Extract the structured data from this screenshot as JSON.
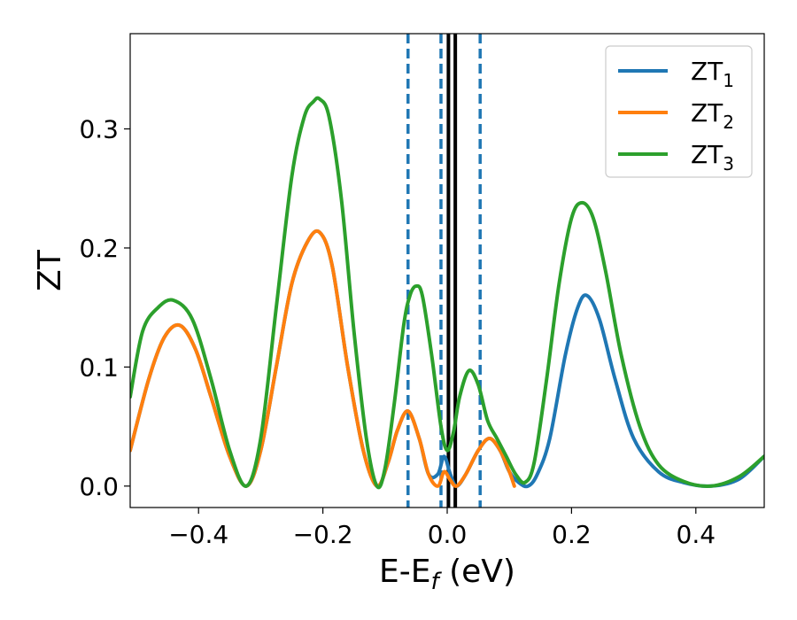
{
  "chart_data": {
    "type": "line",
    "xlabel": "E-E",
    "xlabel_sub": "f",
    "xlabel_unit": " (eV)",
    "ylabel": "ZT",
    "xlim": [
      -0.51,
      0.51
    ],
    "ylim": [
      -0.018,
      0.38
    ],
    "x_ticks": [
      -0.4,
      -0.2,
      0.0,
      0.2,
      0.4
    ],
    "x_tick_labels": [
      "−0.4",
      "−0.2",
      "0.0",
      "0.2",
      "0.4"
    ],
    "y_ticks": [
      0.0,
      0.1,
      0.2,
      0.3
    ],
    "y_tick_labels": [
      "0.0",
      "0.1",
      "0.2",
      "0.3"
    ],
    "legend_position": "top-right",
    "vertical_lines": [
      {
        "x": -0.063,
        "style": "dashed",
        "color": "#1f77b4"
      },
      {
        "x": -0.01,
        "style": "dashed",
        "color": "#1f77b4"
      },
      {
        "x": 0.053,
        "style": "dashed",
        "color": "#1f77b4"
      },
      {
        "x": 0.002,
        "style": "solid",
        "color": "#000000"
      },
      {
        "x": 0.013,
        "style": "solid",
        "color": "#000000"
      }
    ],
    "series": [
      {
        "name": "ZT",
        "sub": "1",
        "color": "#1f77b4",
        "x": [
          -0.51,
          -0.48,
          -0.455,
          -0.43,
          -0.405,
          -0.38,
          -0.35,
          -0.323,
          -0.3,
          -0.275,
          -0.25,
          -0.225,
          -0.205,
          -0.185,
          -0.16,
          -0.135,
          -0.113,
          -0.095,
          -0.08,
          -0.063,
          -0.045,
          -0.03,
          -0.015,
          -0.005,
          0.005,
          0.015,
          0.03,
          0.05,
          0.068,
          0.085,
          0.1,
          0.115,
          0.13,
          0.145,
          0.165,
          0.19,
          0.21,
          0.225,
          0.245,
          0.27,
          0.3,
          0.34,
          0.38,
          0.425,
          0.47,
          0.51
        ],
        "y": [
          0.03,
          0.09,
          0.125,
          0.135,
          0.115,
          0.075,
          0.025,
          0.0,
          0.03,
          0.1,
          0.17,
          0.205,
          0.213,
          0.185,
          0.1,
          0.03,
          0.0,
          0.02,
          0.047,
          0.063,
          0.04,
          0.01,
          0.01,
          0.025,
          0.01,
          0.0,
          0.01,
          0.03,
          0.04,
          0.03,
          0.012,
          0.003,
          0.0,
          0.01,
          0.04,
          0.11,
          0.15,
          0.16,
          0.14,
          0.09,
          0.04,
          0.012,
          0.003,
          0.0,
          0.006,
          0.025
        ]
      },
      {
        "name": "ZT",
        "sub": "2",
        "color": "#ff7f0e",
        "x": [
          -0.51,
          -0.48,
          -0.455,
          -0.43,
          -0.405,
          -0.38,
          -0.35,
          -0.323,
          -0.3,
          -0.275,
          -0.25,
          -0.225,
          -0.205,
          -0.185,
          -0.16,
          -0.135,
          -0.113,
          -0.095,
          -0.08,
          -0.063,
          -0.045,
          -0.03,
          -0.015,
          -0.005,
          0.005,
          0.015,
          0.03,
          0.05,
          0.068,
          0.085,
          0.1,
          0.108
        ],
        "y": [
          0.03,
          0.09,
          0.125,
          0.135,
          0.115,
          0.075,
          0.025,
          0.0,
          0.03,
          0.1,
          0.17,
          0.205,
          0.213,
          0.185,
          0.1,
          0.03,
          0.0,
          0.02,
          0.047,
          0.063,
          0.04,
          0.01,
          0.0,
          0.012,
          0.005,
          0.0,
          0.01,
          0.03,
          0.04,
          0.03,
          0.012,
          0.0
        ]
      },
      {
        "name": "ZT",
        "sub": "3",
        "color": "#2ca02c",
        "x": [
          -0.51,
          -0.49,
          -0.465,
          -0.44,
          -0.41,
          -0.38,
          -0.35,
          -0.323,
          -0.3,
          -0.275,
          -0.25,
          -0.23,
          -0.215,
          -0.205,
          -0.19,
          -0.17,
          -0.15,
          -0.13,
          -0.113,
          -0.1,
          -0.085,
          -0.07,
          -0.06,
          -0.05,
          -0.04,
          -0.025,
          -0.01,
          0.0,
          0.01,
          0.02,
          0.035,
          0.05,
          0.065,
          0.08,
          0.095,
          0.11,
          0.125,
          0.14,
          0.16,
          0.18,
          0.2,
          0.217,
          0.235,
          0.255,
          0.28,
          0.31,
          0.34,
          0.38,
          0.425,
          0.47,
          0.51
        ],
        "y": [
          0.075,
          0.13,
          0.15,
          0.156,
          0.14,
          0.09,
          0.03,
          0.0,
          0.04,
          0.15,
          0.26,
          0.31,
          0.323,
          0.325,
          0.31,
          0.24,
          0.13,
          0.04,
          0.0,
          0.015,
          0.07,
          0.135,
          0.16,
          0.168,
          0.16,
          0.11,
          0.05,
          0.03,
          0.045,
          0.075,
          0.097,
          0.085,
          0.055,
          0.04,
          0.025,
          0.01,
          0.003,
          0.02,
          0.09,
          0.17,
          0.225,
          0.238,
          0.225,
          0.18,
          0.11,
          0.05,
          0.018,
          0.004,
          0.0,
          0.008,
          0.025
        ]
      }
    ]
  }
}
